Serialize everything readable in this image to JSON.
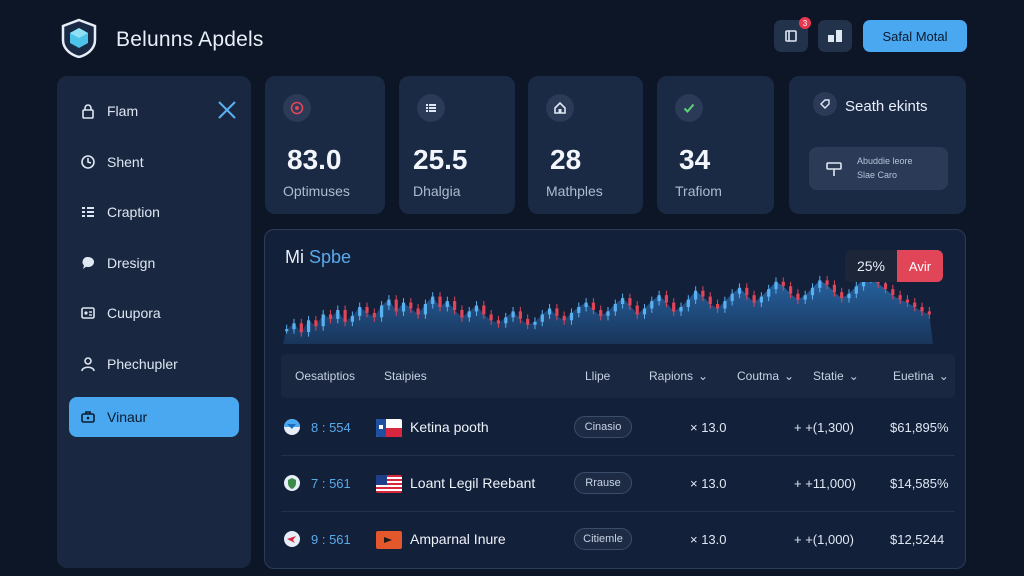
{
  "header": {
    "app_title": "Belunns Apdels",
    "notification_count": "3",
    "cta_label": "Safal Motal"
  },
  "sidebar": {
    "items": [
      {
        "label": "Flam",
        "icon": "lock-icon"
      },
      {
        "label": "Shent",
        "icon": "clock-icon"
      },
      {
        "label": "Craption",
        "icon": "list-icon"
      },
      {
        "label": "Dresign",
        "icon": "chat-icon"
      },
      {
        "label": "Cuupora",
        "icon": "card-icon"
      },
      {
        "label": "Phechupler",
        "icon": "user-icon"
      },
      {
        "label": "Vinaur",
        "icon": "briefcase-icon",
        "active": true
      }
    ]
  },
  "stats": [
    {
      "value": "83.0",
      "label": "Optimuses",
      "icon": "target-icon"
    },
    {
      "value": "25.5",
      "label": "Dhalgia",
      "icon": "list-icon"
    },
    {
      "value": "28",
      "label": "Mathples",
      "icon": "home-icon"
    },
    {
      "value": "34",
      "label": "Trafiom",
      "icon": "check-icon"
    }
  ],
  "search_card": {
    "title": "Seath ekints",
    "line1": "Abuddie leore",
    "line2": "Slae Caro"
  },
  "chart": {
    "title_part1": "Mi",
    "title_part2": "Spbe",
    "pill_value": "25%",
    "pill_action": "Avir"
  },
  "chart_data": {
    "type": "bar",
    "title": "Mi Spbe",
    "xlabel": "",
    "ylabel": "",
    "series": [
      {
        "values": [
          40,
          44,
          38,
          46,
          42,
          50,
          47,
          53,
          45,
          49,
          55,
          51,
          48,
          56,
          60,
          52,
          58,
          54,
          50,
          57,
          62,
          55,
          59,
          53,
          48,
          52,
          56,
          50,
          46,
          44,
          48,
          52,
          47,
          43,
          45,
          50,
          54,
          49,
          46,
          51,
          55,
          58,
          53,
          49,
          52,
          57,
          61,
          56,
          50,
          54,
          59,
          63,
          58,
          52,
          55,
          60,
          66,
          62,
          57,
          54,
          59,
          64,
          68,
          63,
          58,
          62,
          67,
          72,
          69,
          64,
          60,
          63,
          68,
          73,
          70,
          65,
          61,
          64,
          69,
          74,
          78,
          71,
          67,
          63,
          60,
          58,
          55,
          52,
          50
        ]
      }
    ],
    "colors": {
      "up": "#5ab0f0",
      "down": "#e0455a",
      "area": "#2a72b8"
    }
  },
  "table": {
    "headers": [
      "Oesatiptios",
      "Staipies",
      "Llipe",
      "Rapions",
      "Coutma",
      "Statie",
      "Euetina"
    ],
    "rows": [
      {
        "id": "8 : 554",
        "name": "Ketina pooth",
        "tag": "Cinasio",
        "count": "× 13.0",
        "delta": "+ +(1,300)",
        "amount": "$61,895%"
      },
      {
        "id": "7 : 561",
        "name": "Loant Legil Reebant",
        "tag": "Rrause",
        "count": "× 13.0",
        "delta": "+ +11,000)",
        "amount": "$14,585%"
      },
      {
        "id": "9 : 561",
        "name": "Amparnal Inure",
        "tag": "Citiemle",
        "count": "× 13.0",
        "delta": "+ +(1,000)",
        "amount": "$12,5244"
      }
    ]
  }
}
